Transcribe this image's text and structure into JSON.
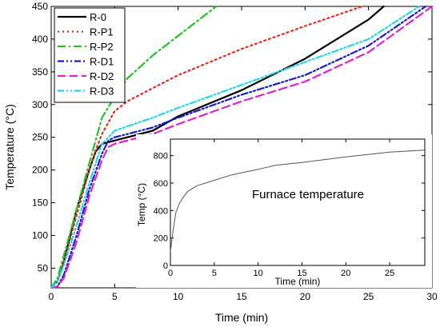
{
  "chart_data": [
    {
      "type": "line",
      "xlabel": "Time (min)",
      "ylabel": "Temperature (°C)",
      "xlim": [
        0,
        30
      ],
      "ylim": [
        20,
        450
      ],
      "xticks": [
        0,
        5,
        10,
        15,
        20,
        25,
        30
      ],
      "yticks": [
        50,
        100,
        150,
        200,
        250,
        300,
        350,
        400,
        450
      ],
      "legend": {
        "placement": "top-left"
      },
      "series": [
        {
          "name": "R-0",
          "color": "#000000",
          "dash": "solid",
          "x": [
            0,
            0.5,
            1,
            2,
            3,
            3.5,
            4,
            5,
            8,
            10,
            15,
            20,
            25,
            26.2
          ],
          "y": [
            20,
            30,
            60,
            140,
            200,
            228,
            240,
            245,
            260,
            282,
            322,
            370,
            430,
            450
          ]
        },
        {
          "name": "R-P1",
          "color": "#e8281e",
          "dash": "dotted",
          "x": [
            0,
            0.5,
            1,
            2,
            3,
            3.5,
            4,
            5,
            6,
            8,
            10,
            15,
            20,
            24.5
          ],
          "y": [
            20,
            30,
            60,
            130,
            200,
            230,
            255,
            290,
            305,
            325,
            345,
            385,
            420,
            450
          ]
        },
        {
          "name": "R-P2",
          "color": "#22c322",
          "dash": "dashdot",
          "x": [
            0,
            0.5,
            1,
            2,
            3,
            4,
            5,
            6,
            8,
            10,
            12,
            13
          ],
          "y": [
            20,
            35,
            70,
            140,
            210,
            280,
            312,
            340,
            375,
            405,
            435,
            450
          ]
        },
        {
          "name": "R-D1",
          "color": "#1a1ad0",
          "dash": "dashdotdot",
          "x": [
            0,
            0.5,
            1,
            2,
            3,
            4,
            4.5,
            5,
            8,
            10,
            15,
            20,
            25,
            29.5
          ],
          "y": [
            20,
            22,
            40,
            100,
            170,
            225,
            245,
            250,
            265,
            280,
            315,
            345,
            390,
            450
          ]
        },
        {
          "name": "R-D2",
          "color": "#e020d0",
          "dash": "dashed",
          "x": [
            0,
            0.5,
            1,
            2,
            3,
            4,
            4.5,
            5,
            8,
            10,
            15,
            20,
            25,
            30
          ],
          "y": [
            20,
            22,
            35,
            90,
            160,
            215,
            235,
            240,
            255,
            270,
            305,
            335,
            380,
            450
          ]
        },
        {
          "name": "R-D3",
          "color": "#22d8e8",
          "dash": "dashdotdot",
          "x": [
            0,
            0.5,
            1,
            2,
            3,
            4,
            5,
            8,
            10,
            15,
            20,
            25,
            29
          ],
          "y": [
            20,
            30,
            55,
            115,
            180,
            240,
            260,
            280,
            295,
            330,
            365,
            400,
            450
          ]
        }
      ]
    },
    {
      "type": "line",
      "inset": true,
      "xlabel": "Time (min)",
      "ylabel": "Temp (°C)",
      "xlim": [
        0,
        29
      ],
      "ylim": [
        0,
        920
      ],
      "xticks": [
        0,
        5,
        10,
        15,
        20,
        25
      ],
      "yticks": [
        0,
        200,
        400,
        600,
        800
      ],
      "annotation": "Furnace temperature",
      "series": [
        {
          "color": "#555555",
          "x": [
            0,
            0.3,
            0.6,
            1,
            1.5,
            2,
            3,
            5,
            7,
            10,
            12,
            15,
            20,
            25,
            29
          ],
          "y": [
            100,
            250,
            380,
            450,
            500,
            540,
            580,
            620,
            660,
            700,
            730,
            750,
            790,
            825,
            840
          ]
        }
      ]
    }
  ]
}
